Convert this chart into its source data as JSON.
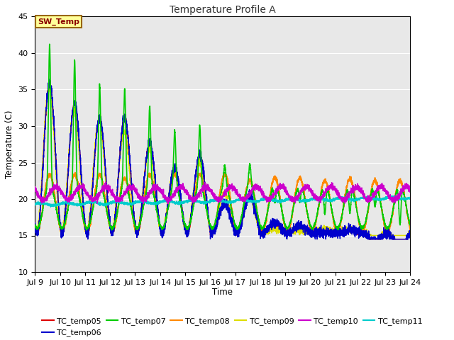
{
  "title": "Temperature Profile A",
  "xlabel": "Time",
  "ylabel": "Temperature (C)",
  "ylim": [
    10,
    45
  ],
  "xlim_days": [
    9,
    24
  ],
  "x_ticks": [
    9,
    10,
    11,
    12,
    13,
    14,
    15,
    16,
    17,
    18,
    19,
    20,
    21,
    22,
    23,
    24
  ],
  "x_tick_labels": [
    "Jul 9",
    "Jul 10",
    "Jul 11",
    "Jul 12",
    "Jul 13",
    "Jul 14",
    "Jul 15",
    "Jul 16",
    "Jul 17",
    "Jul 18",
    "Jul 19",
    "Jul 20",
    "Jul 21",
    "Jul 22",
    "Jul 23",
    "Jul 24"
  ],
  "annotation_text": "SW_Temp",
  "annotation_color": "#8B0000",
  "annotation_bg": "#FFFF99",
  "annotation_border": "#996600",
  "series_order": [
    "TC_temp05",
    "TC_temp06",
    "TC_temp07",
    "TC_temp08",
    "TC_temp09",
    "TC_temp10",
    "TC_temp11"
  ],
  "series": {
    "TC_temp05": {
      "color": "#DD0000",
      "lw": 1.0
    },
    "TC_temp06": {
      "color": "#0000CC",
      "lw": 1.0
    },
    "TC_temp07": {
      "color": "#00CC00",
      "lw": 1.2
    },
    "TC_temp08": {
      "color": "#FF8800",
      "lw": 1.2
    },
    "TC_temp09": {
      "color": "#DDDD00",
      "lw": 1.2
    },
    "TC_temp10": {
      "color": "#CC00CC",
      "lw": 1.0
    },
    "TC_temp11": {
      "color": "#00CCCC",
      "lw": 1.2
    }
  },
  "bg_color": "#E8E8E8",
  "bg_color2": "#D0D0D0",
  "fig_bg": "#FFFFFF",
  "grid_color": "#FFFFFF"
}
